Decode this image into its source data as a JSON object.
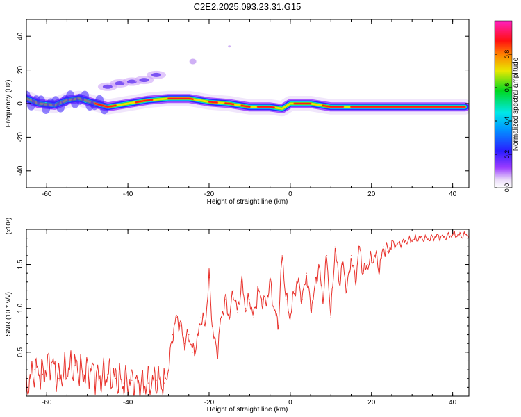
{
  "title": "C2E2.2025.093.23.31.G15",
  "colors": {
    "snr_line": "#e8302a",
    "axis": "#000000",
    "background": "#ffffff"
  },
  "chart_data": [
    {
      "type": "heatmap",
      "title": "C2E2.2025.093.23.31.G15",
      "xlabel": "Height of straight line (km)",
      "ylabel": "Frequency (Hz)",
      "xlim": [
        -65,
        44
      ],
      "ylim": [
        -50,
        50
      ],
      "x_ticks": [
        -60,
        -40,
        -20,
        0,
        20,
        40
      ],
      "y_ticks": [
        -40,
        -20,
        0,
        20,
        40
      ],
      "colorbar": {
        "label": "Normalized spectral amplitude",
        "range": [
          0,
          1
        ],
        "ticks": [
          "0.0",
          "0.2",
          "0.4",
          "0.6",
          "0.8"
        ],
        "tick_values": [
          0,
          0.2,
          0.4,
          0.6,
          0.8
        ],
        "colormap": "rainbow (white-purple-blue-cyan-green-yellow-red-magenta)"
      },
      "ridge": {
        "description": "main frequency track",
        "x": [
          -65,
          -62,
          -58,
          -55,
          -52,
          -48,
          -45,
          -40,
          -35,
          -30,
          -25,
          -20,
          -15,
          -10,
          -5,
          -2,
          0,
          5,
          10,
          20,
          30,
          43
        ],
        "y": [
          3,
          0,
          -1,
          2,
          3,
          0,
          -2,
          0,
          2,
          3,
          3,
          1,
          0,
          -2,
          -2,
          -3,
          0,
          0,
          -2,
          -2,
          -2,
          -2
        ]
      },
      "secondary_features": [
        {
          "x_range": [
            -45,
            -32
          ],
          "y_range": [
            10,
            18
          ],
          "description": "faint branch rising to ~17 Hz"
        },
        {
          "x": -24,
          "y": 25,
          "description": "isolated faint blob"
        },
        {
          "x": -15,
          "y": 34,
          "description": "isolated faint dot"
        }
      ]
    },
    {
      "type": "line",
      "xlabel": "Height of straight line (km)",
      "ylabel": "SNR (10 * v/v)",
      "y_multiplier_label": "(x10⁴)",
      "xlim": [
        -65,
        44
      ],
      "ylim": [
        0,
        1.9
      ],
      "x_ticks": [
        -60,
        -40,
        -20,
        0,
        20,
        40
      ],
      "y_ticks": [
        "0.5",
        "1.0",
        "1.5"
      ],
      "y_tick_values": [
        0.5,
        1.0,
        1.5
      ],
      "series": [
        {
          "x": [
            -65,
            -63,
            -61,
            -59,
            -57,
            -55,
            -53,
            -51,
            -49,
            -47,
            -45,
            -43,
            -41,
            -39,
            -37,
            -35,
            -33,
            -31,
            -30,
            -29,
            -28,
            -27,
            -26,
            -25,
            -24,
            -23,
            -22,
            -21,
            -20,
            -19,
            -18,
            -17,
            -16,
            -15,
            -14,
            -13,
            -12,
            -11,
            -10,
            -9,
            -8,
            -7,
            -6,
            -5,
            -4,
            -3,
            -2,
            -1,
            0,
            1,
            2,
            3,
            4,
            5,
            6,
            7,
            8,
            9,
            10,
            11,
            12,
            13,
            14,
            15,
            16,
            17,
            18,
            19,
            20,
            21,
            22,
            23,
            24,
            25,
            26,
            28,
            30,
            32,
            34,
            36,
            38,
            40,
            42,
            44
          ],
          "y": [
            0.1,
            0.3,
            0.25,
            0.4,
            0.2,
            0.3,
            0.35,
            0.25,
            0.3,
            0.2,
            0.25,
            0.2,
            0.15,
            0.18,
            0.12,
            0.15,
            0.18,
            0.15,
            0.3,
            0.7,
            0.9,
            0.8,
            0.6,
            0.7,
            0.5,
            0.6,
            0.9,
            0.8,
            1.35,
            0.7,
            0.5,
            0.9,
            1.1,
            0.9,
            1.2,
            0.95,
            1.3,
            1.0,
            1.1,
            0.9,
            1.2,
            1.1,
            1.05,
            1.3,
            1.0,
            0.8,
            1.6,
            1.1,
            0.9,
            1.2,
            1.3,
            1.1,
            1.4,
            1.0,
            1.2,
            1.5,
            1.1,
            1.6,
            0.9,
            1.7,
            1.3,
            1.5,
            1.2,
            1.6,
            1.3,
            1.7,
            1.4,
            1.5,
            1.55,
            1.6,
            1.45,
            1.7,
            1.65,
            1.75,
            1.72,
            1.76,
            1.78,
            1.8,
            1.79,
            1.82,
            1.81,
            1.84,
            1.83,
            1.84
          ]
        }
      ]
    }
  ]
}
